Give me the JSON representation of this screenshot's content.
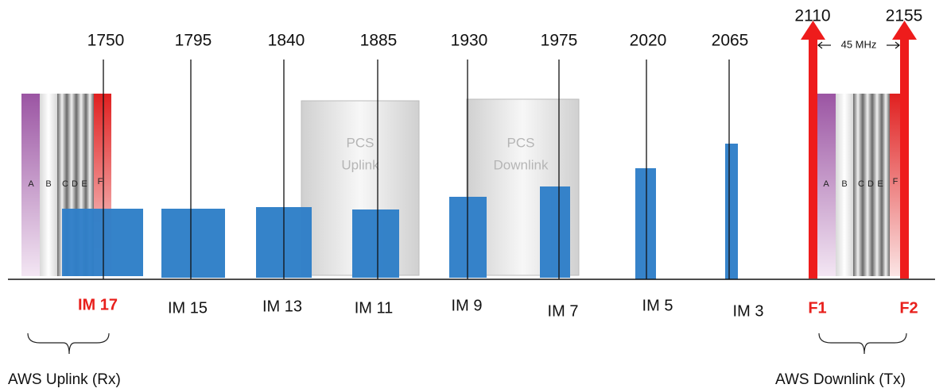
{
  "frequencies": [
    "1750",
    "1795",
    "1840",
    "1885",
    "1930",
    "1975",
    "2020",
    "2065",
    "2110",
    "2155"
  ],
  "intermod": [
    "IM 17",
    "IM 15",
    "IM 13",
    "IM 11",
    "IM 9",
    "IM 7",
    "IM 5",
    "IM 3"
  ],
  "carriers": [
    "F1",
    "F2"
  ],
  "spacing": "45 MHz",
  "pcs": [
    {
      "lines": [
        "PCS",
        "Uplink"
      ]
    },
    {
      "lines": [
        "PCS",
        "Downlink"
      ]
    }
  ],
  "channels": [
    "A",
    "B",
    "C",
    "D",
    "E",
    "F"
  ],
  "bands": [
    "AWS Uplink (Rx)",
    "AWS Downlink (Tx)"
  ]
}
